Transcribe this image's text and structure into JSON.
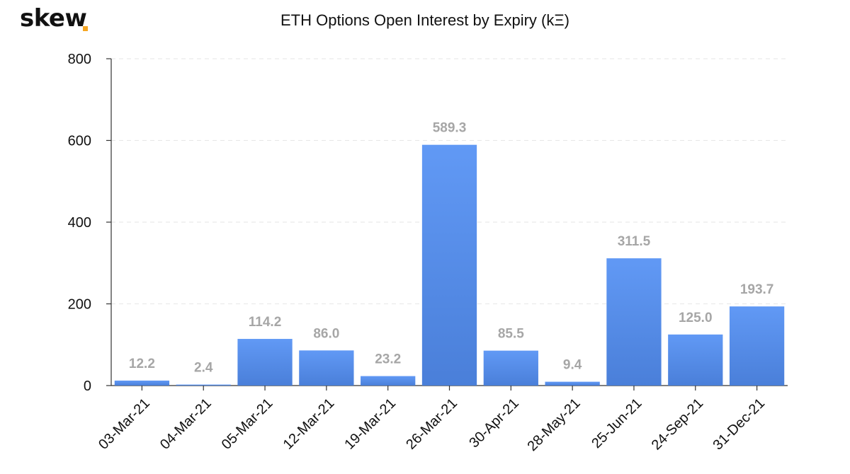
{
  "brand": {
    "name": "skew",
    "dot_color": "#f5a623"
  },
  "chart_data": {
    "type": "bar",
    "title": "ETH Options Open Interest by Expiry (kΞ)",
    "xlabel": "",
    "ylabel": "",
    "categories": [
      "03-Mar-21",
      "04-Mar-21",
      "05-Mar-21",
      "12-Mar-21",
      "19-Mar-21",
      "26-Mar-21",
      "30-Apr-21",
      "28-May-21",
      "25-Jun-21",
      "24-Sep-21",
      "31-Dec-21"
    ],
    "values": [
      12.2,
      2.4,
      114.2,
      86.0,
      23.2,
      589.3,
      85.5,
      9.4,
      311.5,
      125.0,
      193.7
    ],
    "data_labels": [
      "12.2",
      "2.4",
      "114.2",
      "86.0",
      "23.2",
      "589.3",
      "85.5",
      "9.4",
      "311.5",
      "125.0",
      "193.7"
    ],
    "ylim": [
      0,
      800
    ],
    "yticks": [
      0,
      200,
      400,
      600,
      800
    ],
    "grid": true,
    "bar_color_top": "#6199f5",
    "bar_color_bottom": "#4a7fd9",
    "label_color": "#a6a6a6"
  }
}
